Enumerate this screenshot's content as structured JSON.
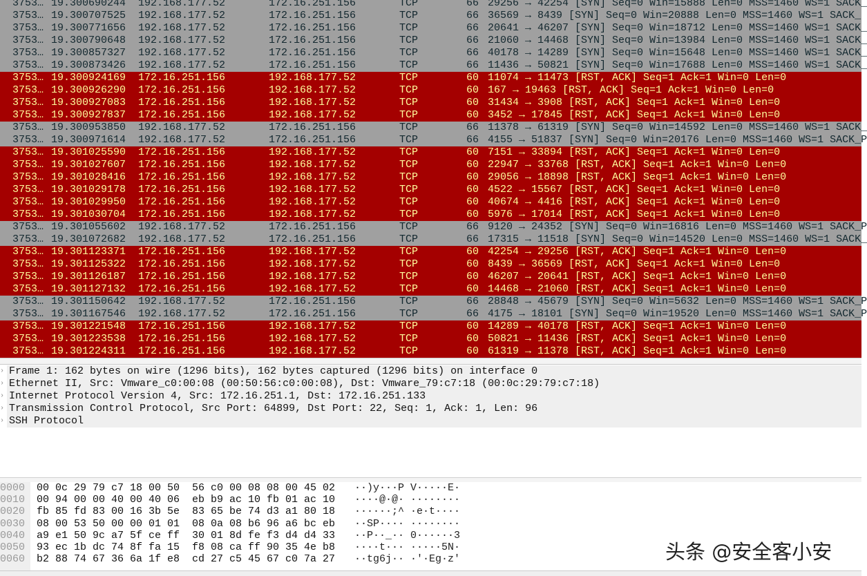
{
  "colors": {
    "syn_bg": "#a0a0a0",
    "syn_fg": "#12272e",
    "rst_bg": "#a40000",
    "rst_fg": "#fffc9c"
  },
  "packets": [
    {
      "type": "syn",
      "no": "3753…",
      "time": "19.300690244",
      "src": "192.168.177.52",
      "dst": "172.16.251.156",
      "proto": "TCP",
      "len": "66",
      "info": "29256 → 42254 [SYN] Seq=0 Win=15888 Len=0 MSS=1460 WS=1 SACK_"
    },
    {
      "type": "syn",
      "no": "3753…",
      "time": "19.300707525",
      "src": "192.168.177.52",
      "dst": "172.16.251.156",
      "proto": "TCP",
      "len": "66",
      "info": "36569 → 8439 [SYN] Seq=0 Win=20888 Len=0 MSS=1460 WS=1 SACK_"
    },
    {
      "type": "syn",
      "no": "3753…",
      "time": "19.300771656",
      "src": "192.168.177.52",
      "dst": "172.16.251.156",
      "proto": "TCP",
      "len": "66",
      "info": "20641 → 46207 [SYN] Seq=0 Win=18712 Len=0 MSS=1460 WS=1 SACK_"
    },
    {
      "type": "syn",
      "no": "3753…",
      "time": "19.300790648",
      "src": "192.168.177.52",
      "dst": "172.16.251.156",
      "proto": "TCP",
      "len": "66",
      "info": "21060 → 14468 [SYN] Seq=0 Win=13984 Len=0 MSS=1460 WS=1 SACK_"
    },
    {
      "type": "syn",
      "no": "3753…",
      "time": "19.300857327",
      "src": "192.168.177.52",
      "dst": "172.16.251.156",
      "proto": "TCP",
      "len": "66",
      "info": "40178 → 14289 [SYN] Seq=0 Win=15648 Len=0 MSS=1460 WS=1 SACK_"
    },
    {
      "type": "syn",
      "no": "3753…",
      "time": "19.300873426",
      "src": "192.168.177.52",
      "dst": "172.16.251.156",
      "proto": "TCP",
      "len": "66",
      "info": "11436 → 50821 [SYN] Seq=0 Win=17688 Len=0 MSS=1460 WS=1 SACK_"
    },
    {
      "type": "rst",
      "no": "3753…",
      "time": "19.300924169",
      "src": "172.16.251.156",
      "dst": "192.168.177.52",
      "proto": "TCP",
      "len": "60",
      "info": "11074 → 11473 [RST, ACK] Seq=1 Ack=1 Win=0 Len=0"
    },
    {
      "type": "rst",
      "no": "3753…",
      "time": "19.300926290",
      "src": "172.16.251.156",
      "dst": "192.168.177.52",
      "proto": "TCP",
      "len": "60",
      "info": "167 → 19463 [RST, ACK] Seq=1 Ack=1 Win=0 Len=0"
    },
    {
      "type": "rst",
      "no": "3753…",
      "time": "19.300927083",
      "src": "172.16.251.156",
      "dst": "192.168.177.52",
      "proto": "TCP",
      "len": "60",
      "info": "31434 → 3908 [RST, ACK] Seq=1 Ack=1 Win=0 Len=0"
    },
    {
      "type": "rst",
      "no": "3753…",
      "time": "19.300927837",
      "src": "172.16.251.156",
      "dst": "192.168.177.52",
      "proto": "TCP",
      "len": "60",
      "info": "3452 → 17845 [RST, ACK] Seq=1 Ack=1 Win=0 Len=0"
    },
    {
      "type": "syn",
      "no": "3753…",
      "time": "19.300953850",
      "src": "192.168.177.52",
      "dst": "172.16.251.156",
      "proto": "TCP",
      "len": "66",
      "info": "11378 → 61319 [SYN] Seq=0 Win=14592 Len=0 MSS=1460 WS=1 SACK_"
    },
    {
      "type": "syn",
      "no": "3753…",
      "time": "19.300971614",
      "src": "192.168.177.52",
      "dst": "172.16.251.156",
      "proto": "TCP",
      "len": "66",
      "info": "4155 → 51837 [SYN] Seq=0 Win=20176 Len=0 MSS=1460 WS=1 SACK_P"
    },
    {
      "type": "rst",
      "no": "3753…",
      "time": "19.301025590",
      "src": "172.16.251.156",
      "dst": "192.168.177.52",
      "proto": "TCP",
      "len": "60",
      "info": "7151 → 33894 [RST, ACK] Seq=1 Ack=1 Win=0 Len=0"
    },
    {
      "type": "rst",
      "no": "3753…",
      "time": "19.301027607",
      "src": "172.16.251.156",
      "dst": "192.168.177.52",
      "proto": "TCP",
      "len": "60",
      "info": "22947 → 33768 [RST, ACK] Seq=1 Ack=1 Win=0 Len=0"
    },
    {
      "type": "rst",
      "no": "3753…",
      "time": "19.301028416",
      "src": "172.16.251.156",
      "dst": "192.168.177.52",
      "proto": "TCP",
      "len": "60",
      "info": "29056 → 18898 [RST, ACK] Seq=1 Ack=1 Win=0 Len=0"
    },
    {
      "type": "rst",
      "no": "3753…",
      "time": "19.301029178",
      "src": "172.16.251.156",
      "dst": "192.168.177.52",
      "proto": "TCP",
      "len": "60",
      "info": "4522 → 15567 [RST, ACK] Seq=1 Ack=1 Win=0 Len=0"
    },
    {
      "type": "rst",
      "no": "3753…",
      "time": "19.301029950",
      "src": "172.16.251.156",
      "dst": "192.168.177.52",
      "proto": "TCP",
      "len": "60",
      "info": "40674 → 4416 [RST, ACK] Seq=1 Ack=1 Win=0 Len=0"
    },
    {
      "type": "rst",
      "no": "3753…",
      "time": "19.301030704",
      "src": "172.16.251.156",
      "dst": "192.168.177.52",
      "proto": "TCP",
      "len": "60",
      "info": "5976 → 17014 [RST, ACK] Seq=1 Ack=1 Win=0 Len=0"
    },
    {
      "type": "syn",
      "no": "3753…",
      "time": "19.301055602",
      "src": "192.168.177.52",
      "dst": "172.16.251.156",
      "proto": "TCP",
      "len": "66",
      "info": "9120 → 24352 [SYN] Seq=0 Win=16816 Len=0 MSS=1460 WS=1 SACK_P"
    },
    {
      "type": "syn",
      "no": "3753…",
      "time": "19.301072682",
      "src": "192.168.177.52",
      "dst": "172.16.251.156",
      "proto": "TCP",
      "len": "66",
      "info": "17315 → 11518 [SYN] Seq=0 Win=14520 Len=0 MSS=1460 WS=1 SACK_"
    },
    {
      "type": "rst",
      "no": "3753…",
      "time": "19.301123371",
      "src": "172.16.251.156",
      "dst": "192.168.177.52",
      "proto": "TCP",
      "len": "60",
      "info": "42254 → 29256 [RST, ACK] Seq=1 Ack=1 Win=0 Len=0"
    },
    {
      "type": "rst",
      "no": "3753…",
      "time": "19.301125322",
      "src": "172.16.251.156",
      "dst": "192.168.177.52",
      "proto": "TCP",
      "len": "60",
      "info": "8439 → 36569 [RST, ACK] Seq=1 Ack=1 Win=0 Len=0"
    },
    {
      "type": "rst",
      "no": "3753…",
      "time": "19.301126187",
      "src": "172.16.251.156",
      "dst": "192.168.177.52",
      "proto": "TCP",
      "len": "60",
      "info": "46207 → 20641 [RST, ACK] Seq=1 Ack=1 Win=0 Len=0"
    },
    {
      "type": "rst",
      "no": "3753…",
      "time": "19.301127132",
      "src": "172.16.251.156",
      "dst": "192.168.177.52",
      "proto": "TCP",
      "len": "60",
      "info": "14468 → 21060 [RST, ACK] Seq=1 Ack=1 Win=0 Len=0"
    },
    {
      "type": "syn",
      "no": "3753…",
      "time": "19.301150642",
      "src": "192.168.177.52",
      "dst": "172.16.251.156",
      "proto": "TCP",
      "len": "66",
      "info": "28848 → 45679 [SYN] Seq=0 Win=5632 Len=0 MSS=1460 WS=1 SACK_P"
    },
    {
      "type": "syn",
      "no": "3753…",
      "time": "19.301167546",
      "src": "192.168.177.52",
      "dst": "172.16.251.156",
      "proto": "TCP",
      "len": "66",
      "info": "4175 → 18101 [SYN] Seq=0 Win=19520 Len=0 MSS=1460 WS=1 SACK_P"
    },
    {
      "type": "rst",
      "no": "3753…",
      "time": "19.301221548",
      "src": "172.16.251.156",
      "dst": "192.168.177.52",
      "proto": "TCP",
      "len": "60",
      "info": "14289 → 40178 [RST, ACK] Seq=1 Ack=1 Win=0 Len=0"
    },
    {
      "type": "rst",
      "no": "3753…",
      "time": "19.301223538",
      "src": "172.16.251.156",
      "dst": "192.168.177.52",
      "proto": "TCP",
      "len": "60",
      "info": "50821 → 11436 [RST, ACK] Seq=1 Ack=1 Win=0 Len=0"
    },
    {
      "type": "rst",
      "no": "3753…",
      "time": "19.301224311",
      "src": "172.16.251.156",
      "dst": "192.168.177.52",
      "proto": "TCP",
      "len": "60",
      "info": "61319 → 11378 [RST, ACK] Seq=1 Ack=1 Win=0 Len=0"
    }
  ],
  "details": [
    "Frame 1: 162 bytes on wire (1296 bits), 162 bytes captured (1296 bits) on interface 0",
    "Ethernet II, Src: Vmware_c0:00:08 (00:50:56:c0:00:08), Dst: Vmware_79:c7:18 (00:0c:29:79:c7:18)",
    "Internet Protocol Version 4, Src: 172.16.251.1, Dst: 172.16.251.133",
    "Transmission Control Protocol, Src Port: 64899, Dst Port: 22, Seq: 1, Ack: 1, Len: 96",
    "SSH Protocol"
  ],
  "hex": [
    {
      "offset": "0000",
      "bytes1": "00 0c 29 79 c7 18 00 50",
      "bytes2": "56 c0 00 08 08 00 45 02",
      "ascii": "··)y···P V·····E·"
    },
    {
      "offset": "0010",
      "bytes1": "00 94 00 00 40 00 40 06",
      "bytes2": "eb b9 ac 10 fb 01 ac 10",
      "ascii": "····@·@· ········"
    },
    {
      "offset": "0020",
      "bytes1": "fb 85 fd 83 00 16 3b 5e",
      "bytes2": "83 65 be 74 d3 a1 80 18",
      "ascii": "······;^ ·e·t····"
    },
    {
      "offset": "0030",
      "bytes1": "08 00 53 50 00 00 01 01",
      "bytes2": "08 0a 08 b6 96 a6 bc eb",
      "ascii": "··SP···· ········"
    },
    {
      "offset": "0040",
      "bytes1": "a9 e1 50 9c a7 5f ce ff",
      "bytes2": "30 01 8d fe f3 d4 d4 33",
      "ascii": "··P··_·· 0······3"
    },
    {
      "offset": "0050",
      "bytes1": "93 ec 1b dc 74 8f fa 15",
      "bytes2": "f8 08 ca ff 90 35 4e b8",
      "ascii": "····t··· ·····5N·"
    },
    {
      "offset": "0060",
      "bytes1": "b2 88 74 67 36 6a 1f e8",
      "bytes2": "cd 27 c5 45 67 c0 7a 27",
      "ascii": "··tg6j·· ·'·Eg·z'"
    }
  ],
  "watermark": "头条 @安全客小安"
}
